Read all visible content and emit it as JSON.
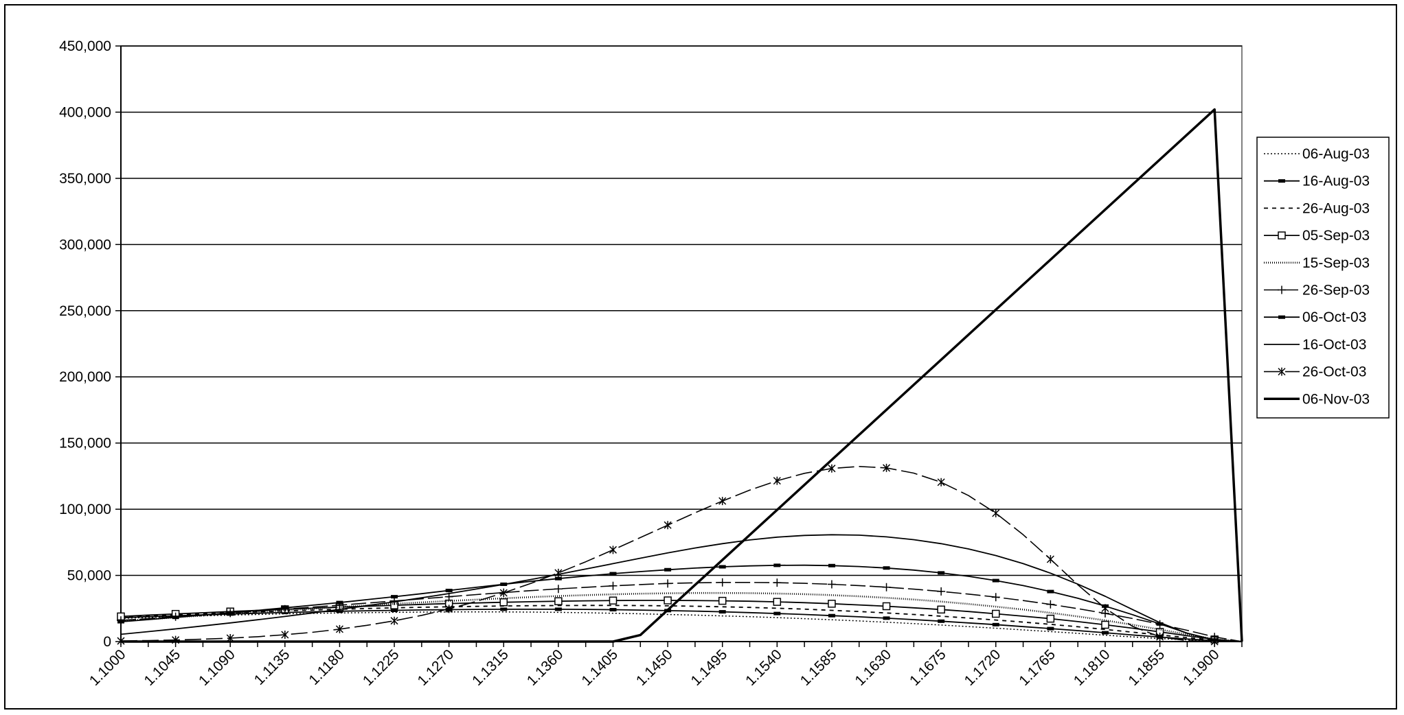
{
  "chart_data": {
    "type": "line",
    "title": "",
    "xlabel": "",
    "ylabel": "",
    "ylim": [
      0,
      450000
    ],
    "y_ticks": [
      "0",
      "50,000",
      "100,000",
      "150,000",
      "200,000",
      "250,000",
      "300,000",
      "350,000",
      "400,000",
      "450,000"
    ],
    "x_tick_labels": [
      "1.1000",
      "1.1045",
      "1.1090",
      "1.1135",
      "1.1180",
      "1.1225",
      "1.1270",
      "1.1315",
      "1.1360",
      "1.1405",
      "1.1450",
      "1.1495",
      "1.1540",
      "1.1585",
      "1.1630",
      "1.1675",
      "1.1720",
      "1.1765",
      "1.1810",
      "1.1855",
      "1.1900"
    ],
    "grid": true,
    "legend_position": "right",
    "x": [
      1.1,
      1.10225,
      1.1045,
      1.10675,
      1.109,
      1.11125,
      1.1135,
      1.11575,
      1.118,
      1.12025,
      1.1225,
      1.12475,
      1.127,
      1.12925,
      1.1315,
      1.13375,
      1.136,
      1.13825,
      1.1405,
      1.14275,
      1.145,
      1.14725,
      1.1495,
      1.15175,
      1.154,
      1.15625,
      1.1585,
      1.16075,
      1.163,
      1.16525,
      1.1675,
      1.16975,
      1.172,
      1.17425,
      1.1765,
      1.17875,
      1.181,
      1.18325,
      1.1855,
      1.18775,
      1.19,
      1.19225
    ],
    "series": [
      {
        "name": "06-Aug-03",
        "style": "dotted",
        "values": [
          17500,
          18200,
          18900,
          19500,
          20000,
          20500,
          21000,
          21300,
          21600,
          21900,
          22100,
          22300,
          22400,
          22400,
          22400,
          22300,
          22100,
          21800,
          21400,
          21000,
          20500,
          20000,
          19400,
          18800,
          18100,
          17300,
          16500,
          15600,
          14600,
          13600,
          12500,
          11300,
          10100,
          8800,
          7500,
          6200,
          4800,
          3500,
          2300,
          1300,
          500,
          0
        ]
      },
      {
        "name": "16-Aug-03",
        "style": "solid-dash-marker",
        "values": [
          18000,
          18800,
          19500,
          20200,
          20800,
          21400,
          22000,
          22500,
          22900,
          23300,
          23600,
          23900,
          24100,
          24300,
          24400,
          24400,
          24400,
          24300,
          24100,
          23800,
          23400,
          23000,
          22500,
          21900,
          21200,
          20500,
          19600,
          18700,
          17700,
          16600,
          15400,
          14100,
          12800,
          11300,
          9800,
          8300,
          6700,
          5000,
          3400,
          1900,
          700,
          0
        ]
      },
      {
        "name": "26-Aug-03",
        "style": "dashed",
        "values": [
          18500,
          19400,
          20200,
          21000,
          21800,
          22500,
          23200,
          23800,
          24400,
          25000,
          25500,
          25900,
          26300,
          26600,
          26900,
          27100,
          27200,
          27300,
          27300,
          27200,
          27000,
          26700,
          26300,
          25800,
          25200,
          24500,
          23600,
          22700,
          21600,
          20500,
          19200,
          17800,
          16300,
          14700,
          13000,
          11200,
          9200,
          7100,
          5000,
          3000,
          1100,
          0
        ]
      },
      {
        "name": "05-Sep-03",
        "style": "solid-square",
        "values": [
          19000,
          20000,
          20900,
          21800,
          22700,
          23600,
          24400,
          25200,
          26000,
          26700,
          27400,
          28100,
          28700,
          29200,
          29700,
          30100,
          30500,
          30800,
          31000,
          31100,
          31100,
          31000,
          30800,
          30500,
          30000,
          29400,
          28600,
          27700,
          26700,
          25500,
          24200,
          22700,
          21000,
          19200,
          17300,
          15100,
          12700,
          10100,
          7300,
          4400,
          1600,
          0
        ]
      },
      {
        "name": "15-Sep-03",
        "style": "dotted-thick",
        "values": [
          15500,
          16900,
          18300,
          19700,
          21000,
          22300,
          23600,
          24900,
          26100,
          27300,
          28500,
          29600,
          30700,
          31700,
          32700,
          33600,
          34400,
          35100,
          35700,
          36200,
          36500,
          36700,
          36700,
          36600,
          36300,
          35800,
          35100,
          34200,
          33100,
          31800,
          30200,
          28400,
          26400,
          24200,
          21700,
          19000,
          16000,
          12700,
          9100,
          5400,
          1800,
          0
        ]
      },
      {
        "name": "26-Sep-03",
        "style": "dash-plus",
        "values": [
          16000,
          17300,
          18800,
          20200,
          21600,
          23000,
          24500,
          26000,
          27500,
          29100,
          30700,
          32300,
          33900,
          35500,
          37000,
          38500,
          39800,
          41000,
          42100,
          43100,
          43900,
          44400,
          44700,
          44700,
          44500,
          44000,
          43300,
          42300,
          41100,
          39600,
          37900,
          35900,
          33600,
          31000,
          28100,
          24900,
          21300,
          17400,
          13100,
          8500,
          3500,
          0
        ]
      },
      {
        "name": "06-Oct-03",
        "style": "solid-dash-marker",
        "values": [
          15000,
          16600,
          18300,
          20000,
          21800,
          23600,
          25500,
          27500,
          29500,
          31700,
          33900,
          36200,
          38600,
          41000,
          43300,
          45500,
          47600,
          49500,
          51300,
          52900,
          54300,
          55500,
          56500,
          57200,
          57600,
          57700,
          57400,
          56700,
          55600,
          54000,
          51900,
          49300,
          46100,
          42300,
          37800,
          32700,
          26800,
          20300,
          13300,
          6400,
          1200,
          0
        ]
      },
      {
        "name": "16-Oct-03",
        "style": "solid",
        "values": [
          5500,
          7500,
          9600,
          11800,
          14100,
          16500,
          19000,
          21600,
          24300,
          27100,
          30000,
          33100,
          36300,
          39700,
          43200,
          46900,
          50800,
          54800,
          58900,
          63000,
          67000,
          70700,
          74000,
          76800,
          78900,
          80200,
          80700,
          80400,
          79100,
          77000,
          74000,
          70000,
          65000,
          58900,
          51700,
          43400,
          34200,
          24200,
          14300,
          6200,
          1300,
          0
        ]
      },
      {
        "name": "26-Oct-03",
        "style": "dash-star",
        "values": [
          500,
          800,
          1200,
          1800,
          2600,
          3700,
          5200,
          7000,
          9400,
          12300,
          15700,
          19800,
          24700,
          30400,
          36800,
          44000,
          51900,
          60300,
          69300,
          78600,
          88000,
          97300,
          106200,
          114400,
          121500,
          127100,
          130800,
          132300,
          131200,
          127300,
          120400,
          110300,
          97000,
          80700,
          62200,
          42900,
          25200,
          11500,
          3600,
          600,
          0,
          0
        ]
      },
      {
        "name": "06-Nov-03",
        "style": "thick",
        "values": [
          0,
          0,
          0,
          0,
          0,
          0,
          0,
          0,
          0,
          0,
          0,
          0,
          0,
          0,
          0,
          0,
          0,
          0,
          0,
          0,
          0,
          0,
          0,
          0,
          0,
          0,
          0,
          0,
          0,
          0,
          0,
          0,
          0,
          0,
          0,
          0,
          0,
          0,
          0,
          0,
          0,
          0
        ]
      }
    ],
    "series_override": {
      "06-Nov-03": {
        "x": [
          1.1,
          1.1405,
          1.14275,
          1.19,
          1.19225
        ],
        "values": [
          0,
          0,
          5000,
          402000,
          0
        ]
      }
    }
  }
}
